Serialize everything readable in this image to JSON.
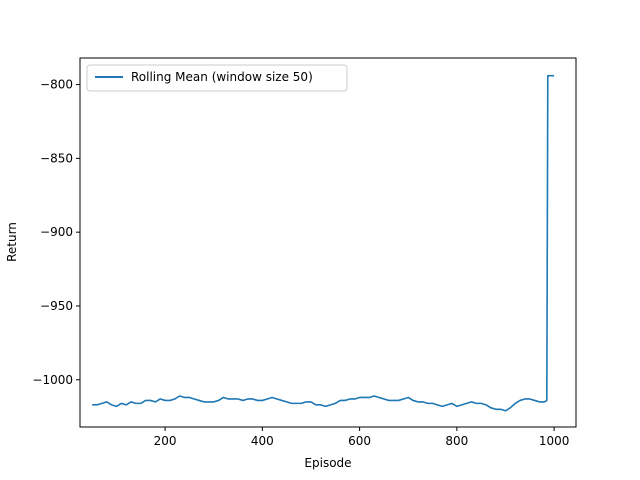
{
  "chart_data": {
    "type": "line",
    "title": "",
    "xlabel": "Episode",
    "ylabel": "Return",
    "xlim": [
      25,
      1045
    ],
    "ylim": [
      -1032,
      -782
    ],
    "xticks": [
      200,
      400,
      600,
      800,
      1000
    ],
    "yticks": [
      -800,
      -850,
      -900,
      -950,
      -1000
    ],
    "xtick_labels": [
      "200",
      "400",
      "600",
      "800",
      "1000"
    ],
    "ytick_labels": [
      "−800",
      "−850",
      "−900",
      "−950",
      "−1000"
    ],
    "grid": false,
    "legend_position": "top-left",
    "series": [
      {
        "name": "Rolling Mean (window size 50)",
        "color": "#1f77b4",
        "x": [
          50,
          60,
          70,
          80,
          90,
          100,
          110,
          120,
          130,
          140,
          150,
          160,
          170,
          180,
          190,
          200,
          210,
          220,
          230,
          240,
          250,
          260,
          270,
          280,
          290,
          300,
          310,
          320,
          330,
          340,
          350,
          360,
          370,
          380,
          390,
          400,
          410,
          420,
          430,
          440,
          450,
          460,
          470,
          480,
          490,
          500,
          510,
          520,
          530,
          540,
          550,
          560,
          570,
          580,
          590,
          600,
          610,
          620,
          630,
          640,
          650,
          660,
          670,
          680,
          690,
          700,
          710,
          720,
          730,
          740,
          750,
          760,
          770,
          780,
          790,
          800,
          810,
          820,
          830,
          840,
          850,
          860,
          870,
          880,
          890,
          900,
          910,
          920,
          930,
          940,
          950,
          960,
          970,
          980,
          985,
          987,
          990,
          995,
          1000
        ],
        "values": [
          -1017,
          -1017,
          -1016,
          -1015,
          -1017,
          -1018,
          -1016,
          -1017,
          -1015,
          -1016,
          -1016,
          -1014,
          -1014,
          -1015,
          -1013,
          -1014,
          -1014,
          -1013,
          -1011,
          -1012,
          -1012,
          -1013,
          -1014,
          -1015,
          -1015,
          -1015,
          -1014,
          -1012,
          -1013,
          -1013,
          -1013,
          -1014,
          -1013,
          -1013,
          -1014,
          -1014,
          -1013,
          -1012,
          -1013,
          -1014,
          -1015,
          -1016,
          -1016,
          -1016,
          -1015,
          -1015,
          -1017,
          -1017,
          -1018,
          -1017,
          -1016,
          -1014,
          -1014,
          -1013,
          -1013,
          -1012,
          -1012,
          -1012,
          -1011,
          -1012,
          -1013,
          -1014,
          -1014,
          -1014,
          -1013,
          -1012,
          -1014,
          -1015,
          -1015,
          -1016,
          -1016,
          -1017,
          -1018,
          -1017,
          -1016,
          -1018,
          -1017,
          -1016,
          -1015,
          -1016,
          -1016,
          -1017,
          -1019,
          -1020,
          -1020,
          -1021,
          -1019,
          -1016,
          -1014,
          -1013,
          -1013,
          -1014,
          -1015,
          -1015,
          -1014,
          -794,
          -794,
          -794,
          -794
        ]
      }
    ]
  }
}
